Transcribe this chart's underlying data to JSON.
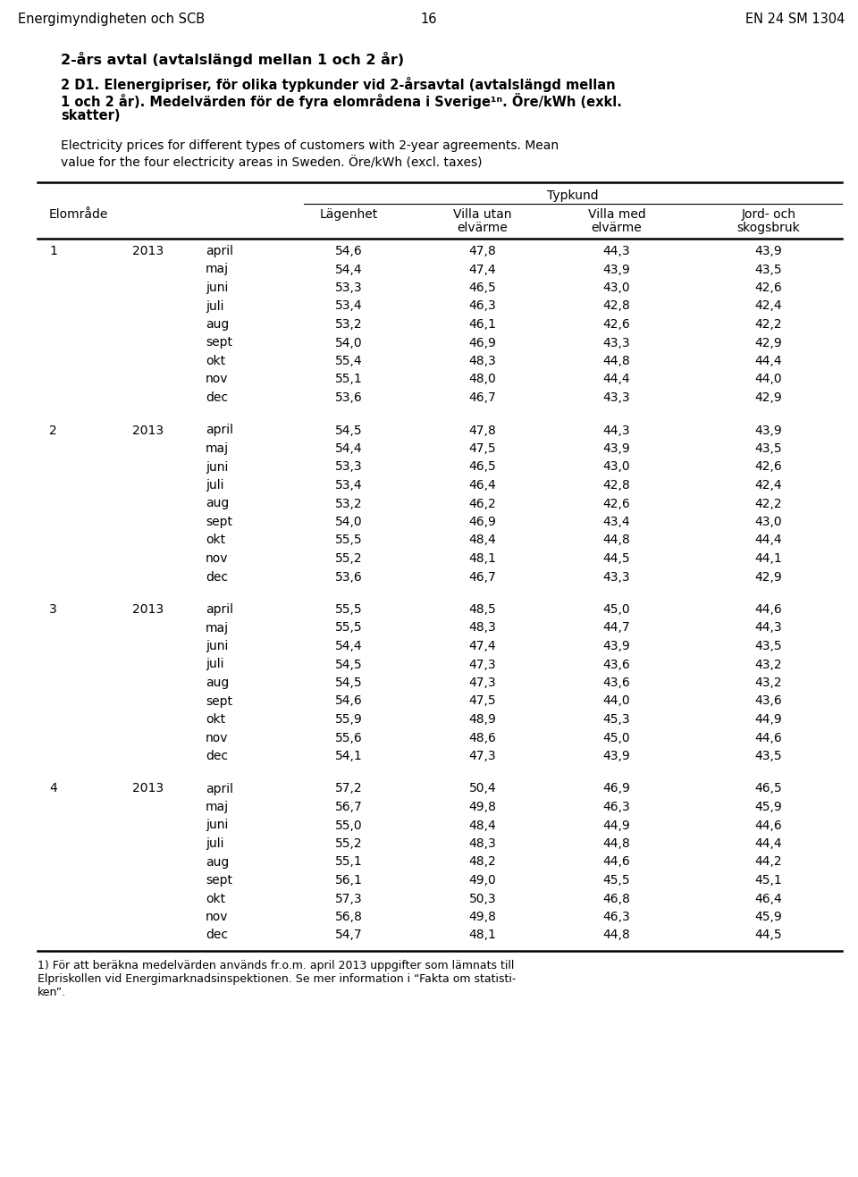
{
  "header_top": "Energimyndigheten och SCB",
  "header_center": "16",
  "header_right": "EN 24 SM 1304",
  "title1": "2-års avtal (avtalslängd mellan 1 och 2 år)",
  "title2_lines": [
    "2 D1. Elenergipriser, för olika typkunder vid 2-årsavtal (avtalslängd mellan",
    "1 och 2 år). Medelvärden för de fyra elområdena i Sverige¹ⁿ. Öre/kWh (exkl.",
    "skatter)"
  ],
  "subtitle_lines": [
    "Electricity prices for different types of customers with 2-year agreements. Mean",
    "value for the four electricity areas in Sweden. Öre/kWh (excl. taxes)"
  ],
  "typkund_label": "Typkund",
  "footnote_lines": [
    "1) För att beräkna medelvärden används fr.o.m. april 2013 uppgifter som lämnats till",
    "Elpriskollen vid Energimarknadsinspektionen. Se mer information i “Fakta om statisti-",
    "ken”."
  ],
  "rows": [
    [
      "1",
      "2013",
      "april",
      "54,6",
      "47,8",
      "44,3",
      "43,9"
    ],
    [
      "",
      "",
      "maj",
      "54,4",
      "47,4",
      "43,9",
      "43,5"
    ],
    [
      "",
      "",
      "juni",
      "53,3",
      "46,5",
      "43,0",
      "42,6"
    ],
    [
      "",
      "",
      "juli",
      "53,4",
      "46,3",
      "42,8",
      "42,4"
    ],
    [
      "",
      "",
      "aug",
      "53,2",
      "46,1",
      "42,6",
      "42,2"
    ],
    [
      "",
      "",
      "sept",
      "54,0",
      "46,9",
      "43,3",
      "42,9"
    ],
    [
      "",
      "",
      "okt",
      "55,4",
      "48,3",
      "44,8",
      "44,4"
    ],
    [
      "",
      "",
      "nov",
      "55,1",
      "48,0",
      "44,4",
      "44,0"
    ],
    [
      "",
      "",
      "dec",
      "53,6",
      "46,7",
      "43,3",
      "42,9"
    ],
    [
      "2",
      "2013",
      "april",
      "54,5",
      "47,8",
      "44,3",
      "43,9"
    ],
    [
      "",
      "",
      "maj",
      "54,4",
      "47,5",
      "43,9",
      "43,5"
    ],
    [
      "",
      "",
      "juni",
      "53,3",
      "46,5",
      "43,0",
      "42,6"
    ],
    [
      "",
      "",
      "juli",
      "53,4",
      "46,4",
      "42,8",
      "42,4"
    ],
    [
      "",
      "",
      "aug",
      "53,2",
      "46,2",
      "42,6",
      "42,2"
    ],
    [
      "",
      "",
      "sept",
      "54,0",
      "46,9",
      "43,4",
      "43,0"
    ],
    [
      "",
      "",
      "okt",
      "55,5",
      "48,4",
      "44,8",
      "44,4"
    ],
    [
      "",
      "",
      "nov",
      "55,2",
      "48,1",
      "44,5",
      "44,1"
    ],
    [
      "",
      "",
      "dec",
      "53,6",
      "46,7",
      "43,3",
      "42,9"
    ],
    [
      "3",
      "2013",
      "april",
      "55,5",
      "48,5",
      "45,0",
      "44,6"
    ],
    [
      "",
      "",
      "maj",
      "55,5",
      "48,3",
      "44,7",
      "44,3"
    ],
    [
      "",
      "",
      "juni",
      "54,4",
      "47,4",
      "43,9",
      "43,5"
    ],
    [
      "",
      "",
      "juli",
      "54,5",
      "47,3",
      "43,6",
      "43,2"
    ],
    [
      "",
      "",
      "aug",
      "54,5",
      "47,3",
      "43,6",
      "43,2"
    ],
    [
      "",
      "",
      "sept",
      "54,6",
      "47,5",
      "44,0",
      "43,6"
    ],
    [
      "",
      "",
      "okt",
      "55,9",
      "48,9",
      "45,3",
      "44,9"
    ],
    [
      "",
      "",
      "nov",
      "55,6",
      "48,6",
      "45,0",
      "44,6"
    ],
    [
      "",
      "",
      "dec",
      "54,1",
      "47,3",
      "43,9",
      "43,5"
    ],
    [
      "4",
      "2013",
      "april",
      "57,2",
      "50,4",
      "46,9",
      "46,5"
    ],
    [
      "",
      "",
      "maj",
      "56,7",
      "49,8",
      "46,3",
      "45,9"
    ],
    [
      "",
      "",
      "juni",
      "55,0",
      "48,4",
      "44,9",
      "44,6"
    ],
    [
      "",
      "",
      "juli",
      "55,2",
      "48,3",
      "44,8",
      "44,4"
    ],
    [
      "",
      "",
      "aug",
      "55,1",
      "48,2",
      "44,6",
      "44,2"
    ],
    [
      "",
      "",
      "sept",
      "56,1",
      "49,0",
      "45,5",
      "45,1"
    ],
    [
      "",
      "",
      "okt",
      "57,3",
      "50,3",
      "46,8",
      "46,4"
    ],
    [
      "",
      "",
      "nov",
      "56,8",
      "49,8",
      "46,3",
      "45,9"
    ],
    [
      "",
      "",
      "dec",
      "54,7",
      "48,1",
      "44,8",
      "44,5"
    ]
  ]
}
